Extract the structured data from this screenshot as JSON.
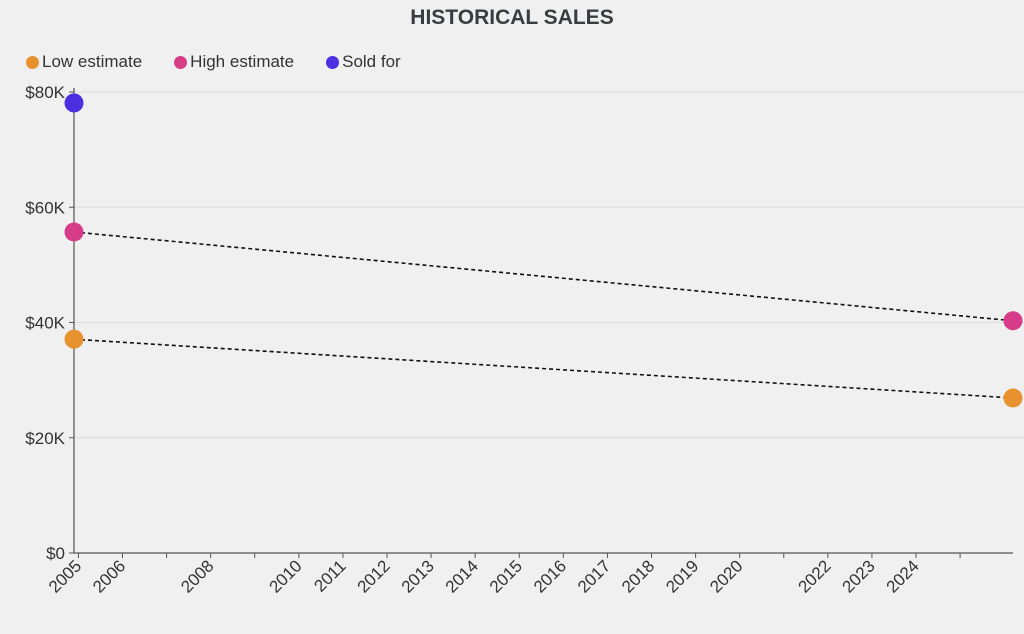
{
  "chart_data": {
    "type": "scatter",
    "title": "HISTORICAL SALES",
    "xlabel": "",
    "ylabel": "",
    "xlim": [
      2004.9,
      2026.2
    ],
    "ylim": [
      0,
      80000
    ],
    "grid": true,
    "legend_position": "top-left",
    "x_ticks": [
      2005,
      2006,
      2007,
      2008,
      2009,
      2010,
      2011,
      2012,
      2013,
      2014,
      2015,
      2016,
      2017,
      2018,
      2019,
      2020,
      2021,
      2022,
      2023,
      2024,
      2025
    ],
    "x_tick_labels": [
      "2005",
      "2006",
      "",
      "2008",
      "",
      "2010",
      "2011",
      "2012",
      "2013",
      "2014",
      "2015",
      "2016",
      "2017",
      "2018",
      "2019",
      "2020",
      "",
      "2022",
      "2023",
      "2024",
      ""
    ],
    "y_ticks": [
      0,
      20000,
      40000,
      60000,
      80000
    ],
    "y_tick_labels": [
      "$0",
      "$20K",
      "$40K",
      "$60K",
      "$80K"
    ],
    "series": [
      {
        "name": "Low estimate",
        "color": "#e8912f",
        "x": [
          2004.9,
          2026.2
        ],
        "values": [
          37100,
          26900
        ],
        "trend_line": true
      },
      {
        "name": "High estimate",
        "color": "#d63c88",
        "x": [
          2004.9,
          2026.2
        ],
        "values": [
          55700,
          40300
        ],
        "trend_line": true
      },
      {
        "name": "Sold for",
        "color": "#4b2fe0",
        "x": [
          2004.9
        ],
        "values": [
          78100
        ],
        "trend_line": false
      }
    ]
  }
}
